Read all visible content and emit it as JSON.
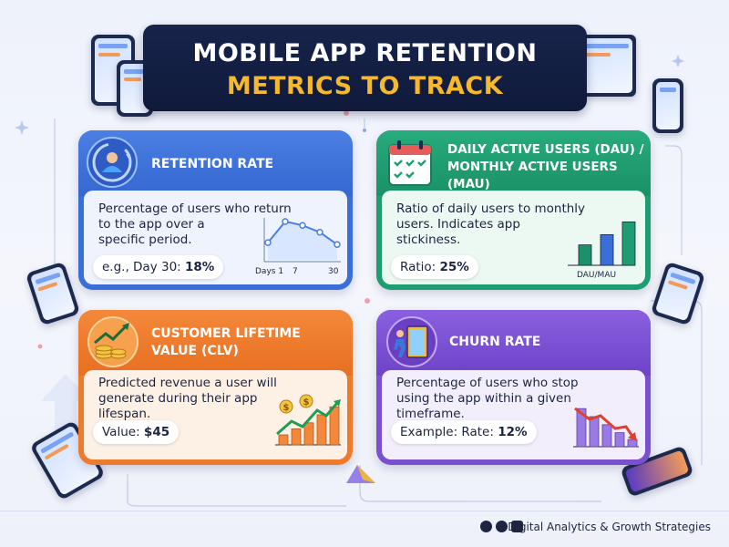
{
  "title": {
    "line1": "MOBILE APP RETENTION",
    "line2": "METRICS TO TRACK"
  },
  "colors": {
    "title_bg": "#17234a",
    "title_accent": "#f5b82e",
    "retention": "#3a6fd8",
    "dau": "#1f9d72",
    "clv": "#ee7a2c",
    "churn": "#7a4fd0"
  },
  "cards": {
    "retention": {
      "title": "RETENTION RATE",
      "icon": "user-refresh-icon",
      "description": [
        "Percentage of users who return",
        "to the app over a",
        "specific period."
      ],
      "example_prefix": "e.g., Day 30: ",
      "example_value": "18%",
      "chart": {
        "type": "line",
        "x_labels": [
          "Days 1",
          "7",
          "30"
        ],
        "points": [
          0.45,
          1.0,
          0.9,
          0.72,
          0.4
        ]
      }
    },
    "dau": {
      "title": [
        "DAILY ACTIVE USERS (DAU) /",
        "MONTHLY ACTIVE USERS",
        "(MAU)"
      ],
      "icon": "calendar-check-icon",
      "description": [
        "Ratio of daily users to monthly",
        "users. Indicates app",
        "stickiness."
      ],
      "example_prefix": "Ratio: ",
      "example_value": "25%",
      "chart": {
        "type": "bar",
        "label": "DAU/MAU",
        "values": [
          0.4,
          0.6,
          0.85
        ]
      }
    },
    "clv": {
      "title": [
        "CUSTOMER LIFETIME",
        "VALUE (CLV)"
      ],
      "icon": "coins-growth-icon",
      "description": [
        "Predicted revenue a user will",
        "generate during their app",
        "lifespan."
      ],
      "example_prefix": "Value: ",
      "example_value": "$45",
      "chart": {
        "type": "bar",
        "values": [
          0.25,
          0.4,
          0.55,
          0.75,
          0.95
        ]
      }
    },
    "churn": {
      "title": "CHURN RATE",
      "icon": "exit-door-icon",
      "description": [
        "Percentage of users who stop",
        "using the app within a given",
        "timeframe."
      ],
      "example_prefix": "Example: Rate: ",
      "example_value": "12%",
      "chart": {
        "type": "bar",
        "values": [
          0.95,
          0.75,
          0.55,
          0.35,
          0.18
        ]
      }
    }
  },
  "footer": {
    "text": "Digital Analytics & Growth Strategies"
  }
}
